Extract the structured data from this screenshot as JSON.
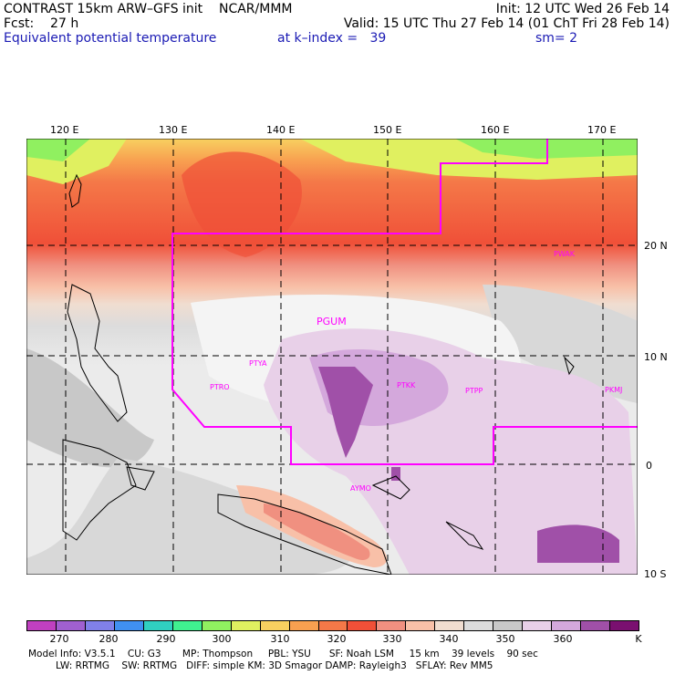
{
  "header": {
    "line1_left": "CONTRAST 15km ARW–GFS init    NCAR/MMM",
    "line1_right": "Init: 12 UTC Wed 26 Feb 14",
    "line2_left": "Fcst:    27 h",
    "line2_right": "Valid: 15 UTC Thu 27 Feb 14 (01 ChT Fri 28 Feb 14)",
    "line3_left": "Equivalent potential temperature",
    "line3_mid": "at k–index =   39",
    "line3_right": "sm= 2"
  },
  "map": {
    "lon_labels": [
      "120 E",
      "130 E",
      "140 E",
      "150 E",
      "160 E",
      "170 E"
    ],
    "lat_labels": [
      "20 N",
      "10 N",
      "0",
      "10 S"
    ],
    "stations": [
      "PGUM",
      "PTYA",
      "PTRO",
      "PTKK",
      "PTPP",
      "PKMJ",
      "PWAK",
      "AYMO"
    ],
    "region_color": "#ff00ff"
  },
  "colorbar": {
    "colors": [
      "#c040c0",
      "#a060d0",
      "#8080e8",
      "#4090f0",
      "#30d0c0",
      "#40f090",
      "#90f060",
      "#e0f060",
      "#f8d060",
      "#f8a050",
      "#f47848",
      "#f05038",
      "#f09080",
      "#f8c0a8",
      "#f0ddd0",
      "#dcdcdc",
      "#c8c8c8",
      "#e8d0e8",
      "#d4a8dc",
      "#a050a8",
      "#7a1070"
    ],
    "labels": [
      "270",
      "280",
      "290",
      "300",
      "310",
      "320",
      "330",
      "340",
      "350",
      "360",
      "K"
    ]
  },
  "model_info": {
    "line1": "Model Info: V3.5.1    CU: G3       MP: Thompson     PBL: YSU      SF: Noah LSM     15 km    39 levels    90 sec",
    "line2": "         LW: RRTMG    SW: RRTMG   DIFF: simple KM: 3D Smagor DAMP: Rayleigh3   SFLAY: Rev MM5"
  }
}
